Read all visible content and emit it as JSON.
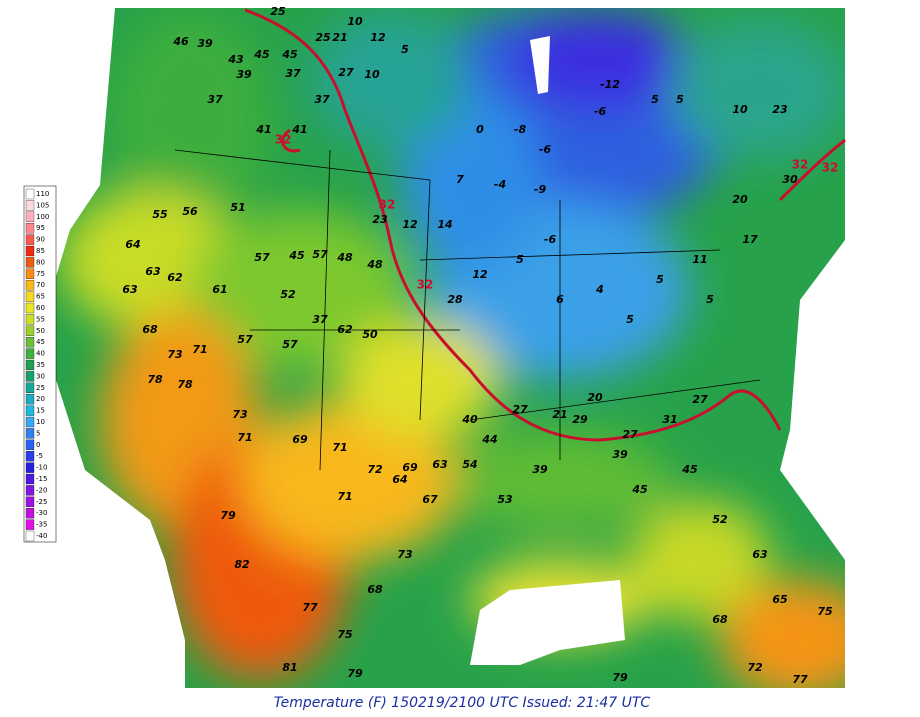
{
  "caption": "Temperature (F) 150219/2100 UTC Issued: 21:47 UTC",
  "legend": {
    "labels": [
      "110",
      "105",
      "100",
      "95",
      "90",
      "85",
      "80",
      "75",
      "70",
      "65",
      "60",
      "55",
      "50",
      "45",
      "40",
      "35",
      "30",
      "25",
      "20",
      "15",
      "10",
      "5",
      "0",
      "-5",
      "-10",
      "-15",
      "-20",
      "-25",
      "-30",
      "-35",
      "-40"
    ],
    "colors": [
      "#ffffff",
      "#ffd8e0",
      "#ffb0b8",
      "#ff8890",
      "#ff5a50",
      "#f02a10",
      "#f05a10",
      "#f88c18",
      "#fbb81c",
      "#f8d820",
      "#e8e828",
      "#c8e02a",
      "#9ad030",
      "#6cc038",
      "#40b040",
      "#20a050",
      "#18a070",
      "#18a898",
      "#18b0c0",
      "#20b8e0",
      "#38a8f0",
      "#3080f0",
      "#2860f0",
      "#2840e8",
      "#2820e0",
      "#5018e0",
      "#8018e0",
      "#a010e0",
      "#c010e0",
      "#e010e0",
      "#ffffff"
    ]
  },
  "stations": [
    "25",
    "25",
    "21",
    "12",
    "10",
    "5",
    "10",
    "27",
    "45",
    "45",
    "43",
    "46",
    "39",
    "39",
    "37",
    "37",
    "41",
    "41",
    "37",
    "51",
    "56",
    "55",
    "64",
    "63",
    "63",
    "62",
    "61",
    "57",
    "45",
    "57",
    "48",
    "48",
    "52",
    "37",
    "62",
    "50",
    "68",
    "73",
    "71",
    "57",
    "57",
    "78",
    "78",
    "73",
    "71",
    "69",
    "71",
    "72",
    "69",
    "63",
    "54",
    "71",
    "64",
    "67",
    "73",
    "68",
    "77",
    "75",
    "79",
    "81",
    "82",
    "79",
    "28",
    "12",
    "5",
    "-6",
    "6",
    "4",
    "5",
    "5",
    "11",
    "5",
    "5",
    "5",
    "-12",
    "-6",
    "-6",
    "-8",
    "0",
    "7",
    "-4",
    "-9",
    "14",
    "12",
    "23",
    "39",
    "45",
    "39",
    "53",
    "44",
    "40",
    "27",
    "29",
    "27",
    "45",
    "52",
    "63",
    "65",
    "68",
    "75",
    "72",
    "77",
    "79",
    "10",
    "23",
    "30",
    "20",
    "17",
    "27",
    "31",
    "21",
    "20"
  ],
  "contour_labels": [
    "32",
    "32",
    "32",
    "32",
    "32"
  ]
}
